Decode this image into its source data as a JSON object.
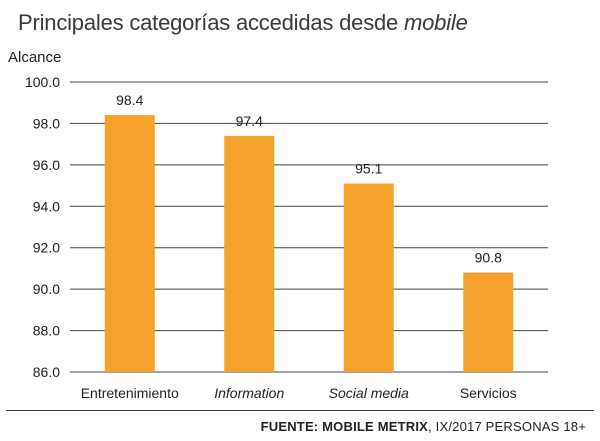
{
  "title": {
    "main": "Principales categorías accedidas desde ",
    "emphasis": "mobile"
  },
  "source": {
    "bold": "FUENTE: MOBILE METRIX",
    "rest": ", IX/2017 PERSONAS 18+"
  },
  "colors": {
    "bar": "#F5A12B",
    "grid": "#444444"
  },
  "chart_data": {
    "type": "bar",
    "ylabel": "Alcance",
    "xlabel": "",
    "ylim": [
      86.0,
      100.0
    ],
    "yticks": [
      "100.0",
      "98.0",
      "96.0",
      "94.0",
      "92.0",
      "90.0",
      "88.0",
      "86.0"
    ],
    "categories": [
      "Entretenimiento",
      "Information",
      "Social media",
      "Servicios"
    ],
    "category_italic": [
      false,
      true,
      true,
      false
    ],
    "values": [
      98.4,
      97.4,
      95.1,
      90.8
    ],
    "value_labels": [
      "98.4",
      "97.4",
      "95.1",
      "90.8"
    ],
    "grid": true
  }
}
